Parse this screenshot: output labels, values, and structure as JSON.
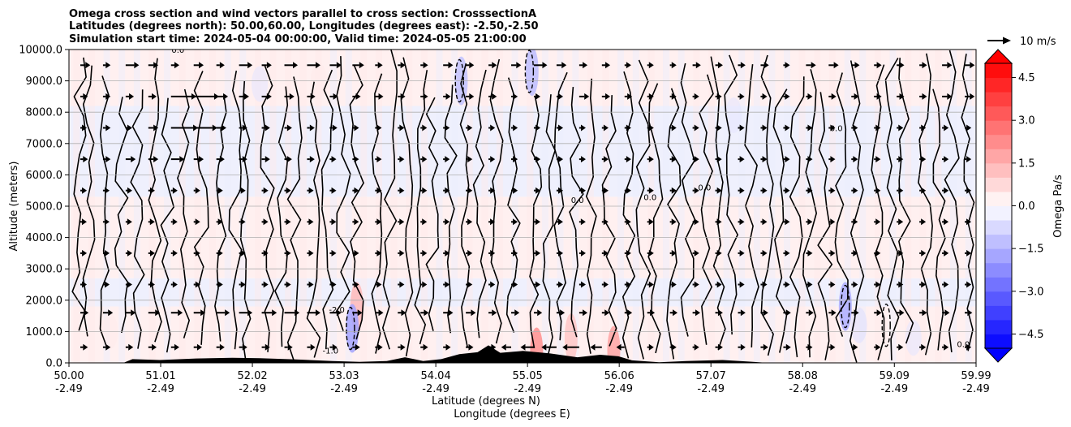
{
  "chart_data": {
    "type": "contour",
    "title_lines": [
      "Omega cross section and wind vectors parallel to cross section: CrosssectionA",
      "Latitudes (degrees north): 50.00,60.00, Longitudes (degrees east): -2.50,-2.50",
      "Simulation start time: 2024-05-04 00:00:00, Valid time: 2024-05-05 21:00:00"
    ],
    "xlabel_lines": [
      "Latitude (degrees N)",
      "Longitude (degrees E)"
    ],
    "ylabel": "Altitude (meters)",
    "x_ticks": [
      {
        "lat": "50.00",
        "lon": "-2.49",
        "value": 50.0
      },
      {
        "lat": "51.01",
        "lon": "-2.49",
        "value": 51.01
      },
      {
        "lat": "52.02",
        "lon": "-2.49",
        "value": 52.02
      },
      {
        "lat": "53.03",
        "lon": "-2.49",
        "value": 53.03
      },
      {
        "lat": "54.04",
        "lon": "-2.49",
        "value": 54.04
      },
      {
        "lat": "55.05",
        "lon": "-2.49",
        "value": 55.05
      },
      {
        "lat": "56.06",
        "lon": "-2.49",
        "value": 56.06
      },
      {
        "lat": "57.07",
        "lon": "-2.49",
        "value": 57.07
      },
      {
        "lat": "58.08",
        "lon": "-2.49",
        "value": 58.08
      },
      {
        "lat": "59.09",
        "lon": "-2.49",
        "value": 59.09
      },
      {
        "lat": "59.99",
        "lon": "-2.49",
        "value": 59.99
      }
    ],
    "xlim": [
      50.0,
      59.99
    ],
    "y_ticks": [
      "0.0",
      "1000.0",
      "2000.0",
      "3000.0",
      "4000.0",
      "5000.0",
      "6000.0",
      "7000.0",
      "8000.0",
      "9000.0",
      "10000.0"
    ],
    "ylim": [
      0,
      10000
    ],
    "grid": "horizontal",
    "colorbar": {
      "label": "Omega Pa/s",
      "ticks": [
        "−4.5",
        "−3.0",
        "−1.5",
        "0.0",
        "1.5",
        "3.0",
        "4.5"
      ],
      "tick_values": [
        -4.5,
        -3.0,
        -1.5,
        0.0,
        1.5,
        3.0,
        4.5
      ],
      "range": [
        -5.0,
        5.0
      ],
      "levels": 20,
      "extend": "both",
      "colormap": "bwr",
      "negative_color": "#0000ff",
      "positive_color": "#ff0000",
      "neutral_color": "#ffffff"
    },
    "quiver_key": {
      "label": "10 m/s",
      "speed": 10
    },
    "bands": [
      {
        "z_from": 0,
        "z_to": 1800,
        "value": 0.12
      },
      {
        "z_from": 1800,
        "z_to": 2700,
        "value": -0.08
      },
      {
        "z_from": 2700,
        "z_to": 3900,
        "value": 0.15
      },
      {
        "z_from": 3900,
        "z_to": 5300,
        "value": 0.1
      },
      {
        "z_from": 5300,
        "z_to": 8200,
        "value": -0.1
      },
      {
        "z_from": 8200,
        "z_to": 10000,
        "value": 0.08
      }
    ],
    "omega_cells": [
      {
        "lat": 53.17,
        "z": 1800,
        "value": 1.4
      },
      {
        "lat": 53.12,
        "z": 1100,
        "value": -1.8
      },
      {
        "lat": 55.15,
        "z": 350,
        "value": 2.2
      },
      {
        "lat": 56.0,
        "z": 400,
        "value": 1.8
      },
      {
        "lat": 55.53,
        "z": 800,
        "value": 1.1
      },
      {
        "lat": 54.32,
        "z": 9000,
        "value": -1.2
      },
      {
        "lat": 55.1,
        "z": 9300,
        "value": -1.3
      },
      {
        "lat": 52.1,
        "z": 8900,
        "value": -0.5
      },
      {
        "lat": 57.32,
        "z": 7900,
        "value": -0.5
      },
      {
        "lat": 58.55,
        "z": 1800,
        "value": -1.6
      },
      {
        "lat": 58.7,
        "z": 1200,
        "value": -0.6
      },
      {
        "lat": 59.3,
        "z": 800,
        "value": -0.5
      },
      {
        "lat": 50.45,
        "z": 1000,
        "value": 0.4
      },
      {
        "lat": 52.75,
        "z": 9000,
        "value": 0.4
      }
    ],
    "contour_labels": [
      {
        "text": "0.0",
        "lat": 57.0,
        "z": 5500
      },
      {
        "text": "0.0",
        "lat": 59.85,
        "z": 500
      },
      {
        "text": "-2.0",
        "lat": 52.95,
        "z": 1600
      },
      {
        "text": "-1.0",
        "lat": 52.88,
        "z": 300
      },
      {
        "text": "0.0",
        "lat": 58.45,
        "z": 7400
      },
      {
        "text": "0.0",
        "lat": 51.2,
        "z": 9900
      },
      {
        "text": "0.0",
        "lat": 55.6,
        "z": 5100
      },
      {
        "text": "0.0",
        "lat": 56.4,
        "z": 5200
      }
    ],
    "terrain": [
      {
        "lat": 50.0,
        "z": 0
      },
      {
        "lat": 50.6,
        "z": 0
      },
      {
        "lat": 50.7,
        "z": 120
      },
      {
        "lat": 51.0,
        "z": 90
      },
      {
        "lat": 51.4,
        "z": 140
      },
      {
        "lat": 51.8,
        "z": 160
      },
      {
        "lat": 52.1,
        "z": 150
      },
      {
        "lat": 52.5,
        "z": 110
      },
      {
        "lat": 52.9,
        "z": 60
      },
      {
        "lat": 53.2,
        "z": 30
      },
      {
        "lat": 53.5,
        "z": 60
      },
      {
        "lat": 53.7,
        "z": 180
      },
      {
        "lat": 53.9,
        "z": 60
      },
      {
        "lat": 54.1,
        "z": 120
      },
      {
        "lat": 54.3,
        "z": 280
      },
      {
        "lat": 54.5,
        "z": 340
      },
      {
        "lat": 54.62,
        "z": 560
      },
      {
        "lat": 54.75,
        "z": 320
      },
      {
        "lat": 55.0,
        "z": 380
      },
      {
        "lat": 55.3,
        "z": 300
      },
      {
        "lat": 55.6,
        "z": 180
      },
      {
        "lat": 55.85,
        "z": 260
      },
      {
        "lat": 56.05,
        "z": 210
      },
      {
        "lat": 56.2,
        "z": 80
      },
      {
        "lat": 56.5,
        "z": 20
      },
      {
        "lat": 56.8,
        "z": 60
      },
      {
        "lat": 57.2,
        "z": 90
      },
      {
        "lat": 57.5,
        "z": 40
      },
      {
        "lat": 57.7,
        "z": 0
      },
      {
        "lat": 59.99,
        "z": 0
      }
    ],
    "wind_rows": [
      {
        "z": 9500,
        "u": [
          1.5,
          0.8,
          2.5,
          1.5,
          1.0,
          1.5,
          1.0,
          2.5,
          1.5,
          2.5,
          2.5,
          2.0,
          2.0,
          0.8,
          0.8,
          0.8,
          1.5,
          1.0,
          1.0,
          1.5,
          2.5,
          1.5,
          1.0,
          1.0,
          0.5,
          0.5,
          0.5,
          1.0,
          0.8,
          0.8,
          1.0,
          0.5,
          1.5,
          1.5,
          1.0,
          0.8,
          0.8,
          0.8,
          1.5,
          1.5
        ]
      },
      {
        "z": 8500,
        "u": [
          0.8,
          0.8,
          1.0,
          1.0,
          6.0,
          6.0,
          2.0,
          1.5,
          1.5,
          1.5,
          1.0,
          1.0,
          1.0,
          1.0,
          0.8,
          0.8,
          0.8,
          1.0,
          1.0,
          0.5,
          0.5,
          0.5,
          1.5,
          1.0,
          0.8,
          0.5,
          0.5,
          0.5,
          0.5,
          0.5,
          0.5,
          0.5,
          0.5,
          0.8,
          0.8,
          0.8,
          0.8,
          0.8,
          1.5,
          1.5
        ]
      },
      {
        "z": 7500,
        "u": [
          0.5,
          0.8,
          0.5,
          1.5,
          6.5,
          5.5,
          1.5,
          1.0,
          1.0,
          0.8,
          0.8,
          0.8,
          0.5,
          0.5,
          0.5,
          0.5,
          0.5,
          0.5,
          0.5,
          0.5,
          0.5,
          0.5,
          0.5,
          0.5,
          0.5,
          0.5,
          0.5,
          0.5,
          0.5,
          0.5,
          0.5,
          0.5,
          0.5,
          0.5,
          0.5,
          0.5,
          0.5,
          0.5,
          0.5,
          0.5
        ]
      },
      {
        "z": 6500,
        "u": [
          0.8,
          0.8,
          1.5,
          1.5,
          2.5,
          1.5,
          1.0,
          1.0,
          1.0,
          0.8,
          0.8,
          0.5,
          0.5,
          0.5,
          0.5,
          0.5,
          0.5,
          0.5,
          0.5,
          0.5,
          0.5,
          0.5,
          0.5,
          0.5,
          0.5,
          0.5,
          0.5,
          0.5,
          0.5,
          0.5,
          0.5,
          0.5,
          0.5,
          0.5,
          0.5,
          0.5,
          0.5,
          0.5,
          0.5,
          0.5
        ]
      },
      {
        "z": 5500,
        "u": [
          0.5,
          0.5,
          0.5,
          0.5,
          0.5,
          0.5,
          0.5,
          0.5,
          0.5,
          0.5,
          0.5,
          0.5,
          0.5,
          0.5,
          0.5,
          0.5,
          0.5,
          0.5,
          0.5,
          0.5,
          0.5,
          0.5,
          0.5,
          0.5,
          0.5,
          0.5,
          0.5,
          0.5,
          0.5,
          0.5,
          0.5,
          0.5,
          0.5,
          0.5,
          0.5,
          0.5,
          0.5,
          0.5,
          0.5,
          0.5
        ]
      },
      {
        "z": 4500,
        "u": [
          0.3,
          0.3,
          0.3,
          0.3,
          0.3,
          0.3,
          0.3,
          0.3,
          0.3,
          0.3,
          0.3,
          0.3,
          0.3,
          0.3,
          0.3,
          0.3,
          0.3,
          0.3,
          0.3,
          0.3,
          0.3,
          0.3,
          0.3,
          0.3,
          0.3,
          0.3,
          0.3,
          0.3,
          0.3,
          0.3,
          0.3,
          0.3,
          0.3,
          0.3,
          0.3,
          0.3,
          0.3,
          0.3,
          0.3,
          0.3
        ]
      },
      {
        "z": 3500,
        "u": [
          0.5,
          0.5,
          0.5,
          0.5,
          0.5,
          0.5,
          0.5,
          0.5,
          0.5,
          0.5,
          0.5,
          0.5,
          0.5,
          0.5,
          0.5,
          0.5,
          0.5,
          0.5,
          0.5,
          0.5,
          0.5,
          0.5,
          0.5,
          0.5,
          0.5,
          0.5,
          0.5,
          0.5,
          0.5,
          0.5,
          0.5,
          0.5,
          0.5,
          0.5,
          0.5,
          0.5,
          0.5,
          0.5,
          0.5,
          0.5
        ]
      },
      {
        "z": 2500,
        "u": [
          0.5,
          0.5,
          0.5,
          0.5,
          0.5,
          0.5,
          0.5,
          0.5,
          0.5,
          0.5,
          0.5,
          0.5,
          0.5,
          0.5,
          0.5,
          0.5,
          0.5,
          0.5,
          0.5,
          0.5,
          0.5,
          0.5,
          0.5,
          0.5,
          0.5,
          0.5,
          0.5,
          0.5,
          0.5,
          0.5,
          0.5,
          0.5,
          0.5,
          0.5,
          0.5,
          0.5,
          0.5,
          0.5,
          0.5,
          0.5
        ]
      },
      {
        "z": 1600,
        "u": [
          1.0,
          1.5,
          1.5,
          2.0,
          2.0,
          2.0,
          2.5,
          2.5,
          3.0,
          3.0,
          2.5,
          2.0,
          1.5,
          1.0,
          1.0,
          1.0,
          1.5,
          1.5,
          1.0,
          1.0,
          1.0,
          1.0,
          1.0,
          0.8,
          0.8,
          0.8,
          0.8,
          0.8,
          0.8,
          0.8,
          0.8,
          0.8,
          0.8,
          0.8,
          0.8,
          0.8,
          0.8,
          0.8,
          0.8,
          0.8
        ]
      },
      {
        "z": 500,
        "u": [
          0.8,
          0.8,
          0.8,
          1.0,
          1.0,
          1.0,
          1.0,
          1.0,
          1.0,
          1.0,
          1.0,
          0.8,
          0.8,
          0.8,
          0.8,
          0.8,
          0.8,
          0.8,
          0.8,
          -1.5,
          -2.5,
          -3.0,
          -3.5,
          -2.0,
          -1.0,
          0.5,
          0.5,
          0.5,
          0.8,
          0.8,
          0.8,
          0.8,
          0.5,
          0.5,
          0.5,
          0.5,
          0.5,
          0.5,
          0.5,
          0.5
        ]
      }
    ]
  }
}
